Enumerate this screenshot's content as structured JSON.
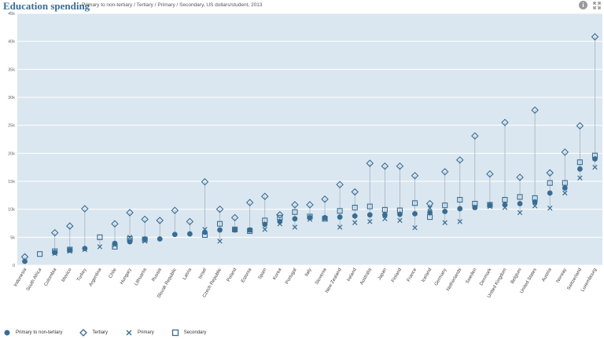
{
  "header": {
    "title": "Education spending",
    "subtitle": "Primary to non-tertiary / Tertiary / Primary / Secondary, US dollars/student, 2013",
    "info_icon": "info-icon",
    "expand_icon": "expand-icon"
  },
  "colors": {
    "plot_bg": "#dbe7f0",
    "marker": "#3a6d93",
    "range_line": "#9fb3c3",
    "grid": "#ffffff"
  },
  "legend": {
    "primary_nontertiary": "Primary to non-tertiary",
    "tertiary": "Tertiary",
    "primary": "Primary",
    "secondary": "Secondary"
  },
  "chart_data": {
    "type": "scatter",
    "ylim": [
      0,
      45000
    ],
    "yticks": [
      {
        "value": 0,
        "label": "0"
      },
      {
        "value": 5000,
        "label": "5k"
      },
      {
        "value": 10000,
        "label": "10k"
      },
      {
        "value": 15000,
        "label": "15k"
      },
      {
        "value": 20000,
        "label": "20k"
      },
      {
        "value": 25000,
        "label": "25k"
      },
      {
        "value": 30000,
        "label": "30k"
      },
      {
        "value": 35000,
        "label": "35k"
      },
      {
        "value": 40000,
        "label": "40k"
      },
      {
        "value": 45000,
        "label": "45k"
      }
    ],
    "grid": true,
    "legend_position": "bottom-left",
    "categories": [
      "Indonesia",
      "South Africa",
      "Colombia",
      "Mexico",
      "Turkey",
      "Argentina",
      "Chile",
      "Hungary",
      "Lithuania",
      "Russia",
      "Slovak Republic",
      "Latvia",
      "Israel",
      "Czech Republic",
      "Poland",
      "Estonia",
      "Spain",
      "Korea",
      "Portugal",
      "Italy",
      "Slovenia",
      "New Zealand",
      "Ireland",
      "Australia",
      "Japan",
      "Finland",
      "France",
      "Iceland",
      "Germany",
      "Netherlands",
      "Sweden",
      "Denmark",
      "United Kingdom",
      "Belgium",
      "United States",
      "Austria",
      "Norway",
      "Switzerland",
      "Luxembourg"
    ],
    "series": [
      {
        "name": "Primary to non-tertiary",
        "marker": "circle",
        "values": [
          700,
          null,
          2300,
          2700,
          3000,
          null,
          3900,
          4200,
          4700,
          4700,
          5500,
          5600,
          5900,
          6300,
          6300,
          6300,
          7300,
          7800,
          8300,
          8500,
          8500,
          8600,
          8800,
          9000,
          9000,
          9100,
          9200,
          9400,
          9600,
          10100,
          10300,
          10700,
          10800,
          11000,
          11300,
          12900,
          13800,
          17200,
          19000
        ]
      },
      {
        "name": "Tertiary",
        "marker": "diamond",
        "values": [
          1500,
          null,
          5800,
          7000,
          10100,
          null,
          7400,
          9400,
          8200,
          8000,
          9800,
          7800,
          14900,
          10000,
          8500,
          11200,
          12300,
          9000,
          10800,
          10800,
          11800,
          14400,
          13100,
          18200,
          17700,
          17700,
          16000,
          11000,
          16700,
          18800,
          23100,
          16300,
          25500,
          15700,
          27700,
          16500,
          20200,
          24900,
          40800
        ]
      },
      {
        "name": "Primary",
        "marker": "cross",
        "values": [
          null,
          null,
          2100,
          2500,
          2800,
          3300,
          3600,
          5000,
          4300,
          null,
          null,
          null,
          6400,
          4300,
          6300,
          6300,
          6400,
          7400,
          6800,
          8200,
          8300,
          6800,
          7600,
          7800,
          8300,
          8000,
          6700,
          10200,
          7600,
          7800,
          10400,
          10500,
          10300,
          9400,
          10600,
          10200,
          12900,
          15600,
          17500
        ]
      },
      {
        "name": "Secondary",
        "marker": "square",
        "values": [
          null,
          2000,
          2500,
          2800,
          null,
          5000,
          3300,
          4700,
          4600,
          null,
          null,
          null,
          5400,
          7400,
          6400,
          6100,
          8000,
          8500,
          9500,
          8700,
          8300,
          9700,
          10300,
          10500,
          9900,
          9800,
          11100,
          8600,
          10700,
          11700,
          11000,
          10800,
          11700,
          12200,
          12000,
          14700,
          14700,
          18400,
          19600
        ]
      }
    ]
  }
}
